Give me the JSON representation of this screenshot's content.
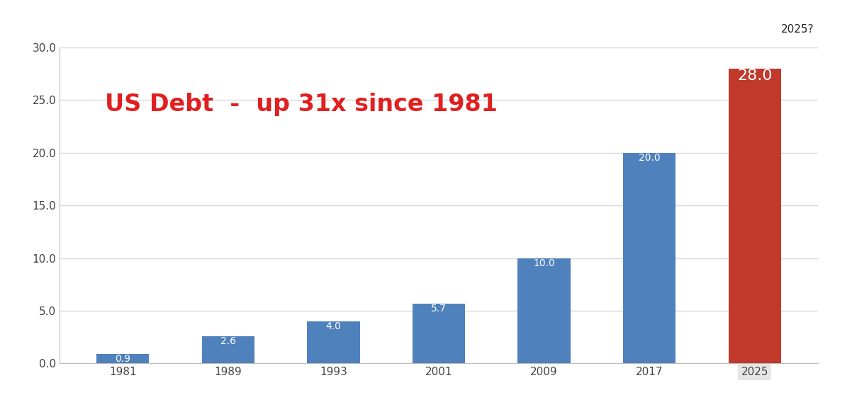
{
  "chart_data": {
    "type": "bar",
    "title": "US Debt  -  up 31x since 1981",
    "annotation": "2025?",
    "categories": [
      "1981",
      "1989",
      "1993",
      "2001",
      "2009",
      "2017",
      "2025"
    ],
    "values": [
      0.9,
      2.6,
      4.0,
      5.7,
      10.0,
      20.0,
      28.0
    ],
    "value_labels": [
      "0.9",
      "2.6",
      "4.0",
      "5.7",
      "10.0",
      "20.0",
      "28.0"
    ],
    "colors": [
      "#4f81bd",
      "#4f81bd",
      "#4f81bd",
      "#4f81bd",
      "#4f81bd",
      "#4f81bd",
      "#c0392b"
    ],
    "ylim": [
      0,
      30
    ],
    "yticks": [
      {
        "value": 0,
        "label": "0.0"
      },
      {
        "value": 5,
        "label": "5.0"
      },
      {
        "value": 10,
        "label": "10.0"
      },
      {
        "value": 15,
        "label": "15.0"
      },
      {
        "value": 20,
        "label": "20.0"
      },
      {
        "value": 25,
        "label": "25.0"
      },
      {
        "value": 30,
        "label": "30.0"
      }
    ],
    "grid": true,
    "data_labels": true
  }
}
